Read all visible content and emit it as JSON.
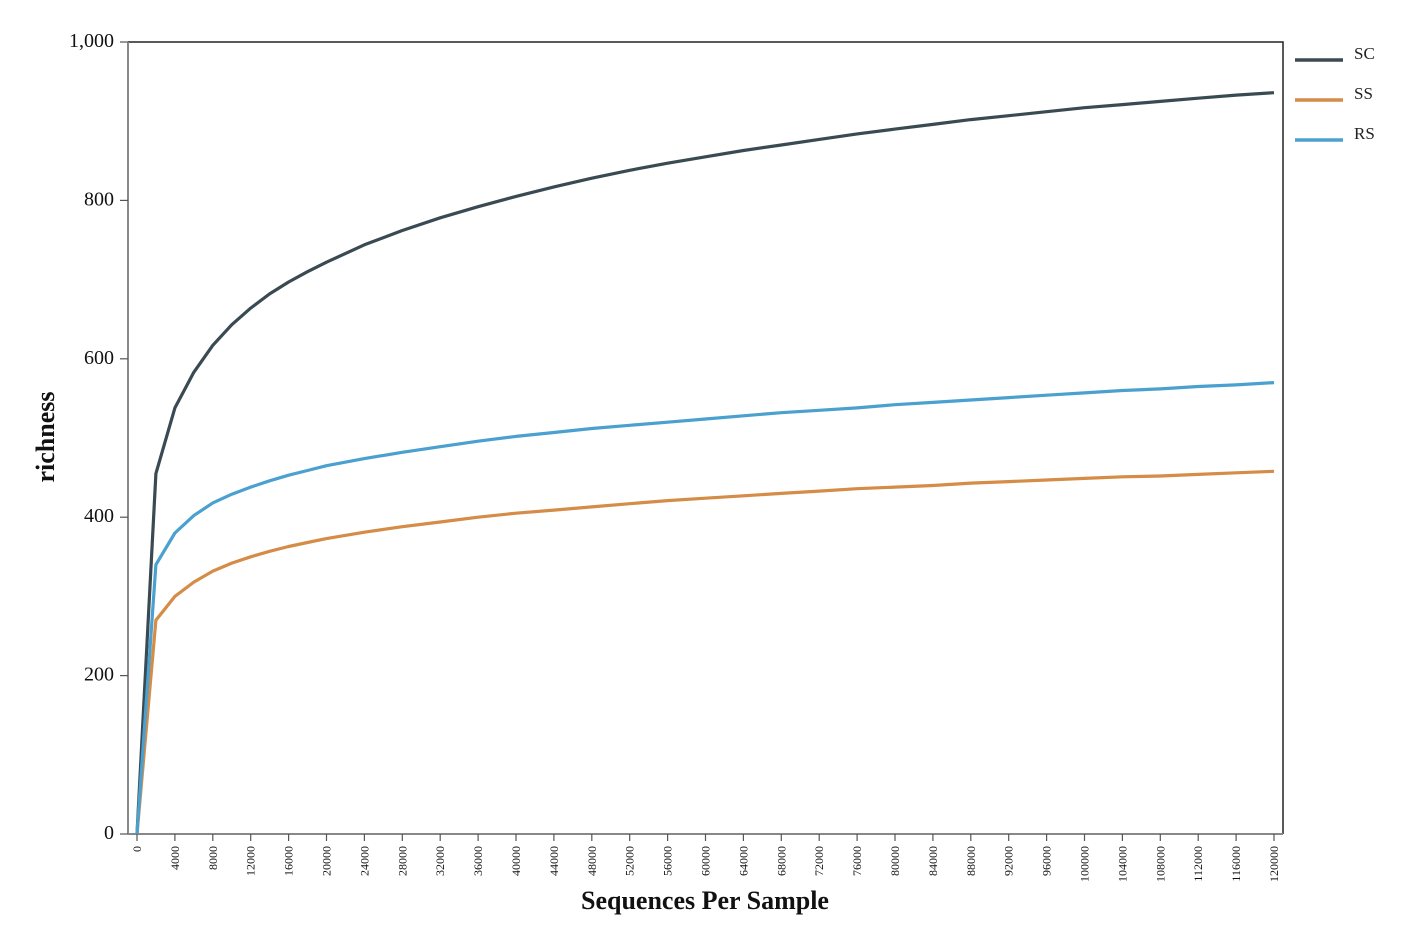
{
  "chart_data": {
    "type": "line",
    "xlabel": "Sequences Per Sample",
    "ylabel": "richness",
    "xlim": [
      0,
      120000
    ],
    "ylim": [
      0,
      1000
    ],
    "x_ticks": [
      "0",
      "4000",
      "8000",
      "12000",
      "16000",
      "20000",
      "24000",
      "28000",
      "32000",
      "36000",
      "40000",
      "44000",
      "48000",
      "52000",
      "56000",
      "60000",
      "64000",
      "68000",
      "72000",
      "76000",
      "80000",
      "84000",
      "88000",
      "92000",
      "96000",
      "100000",
      "104000",
      "108000",
      "112000",
      "116000",
      "120000"
    ],
    "y_ticks": [
      "0",
      "200",
      "400",
      "600",
      "800",
      "1,000"
    ],
    "legend_position": "top-right",
    "grid": false,
    "x": [
      0,
      2000,
      4000,
      6000,
      8000,
      10000,
      12000,
      14000,
      16000,
      18000,
      20000,
      24000,
      28000,
      32000,
      36000,
      40000,
      44000,
      48000,
      52000,
      56000,
      60000,
      64000,
      68000,
      72000,
      76000,
      80000,
      84000,
      88000,
      92000,
      96000,
      100000,
      104000,
      108000,
      112000,
      116000,
      120000
    ],
    "series": [
      {
        "name": "SC",
        "color": "#3a4a52",
        "values": [
          0,
          455,
          538,
          583,
          617,
          643,
          664,
          682,
          697,
          710,
          722,
          744,
          762,
          778,
          792,
          805,
          817,
          828,
          838,
          847,
          855,
          863,
          870,
          877,
          884,
          890,
          896,
          902,
          907,
          912,
          917,
          921,
          925,
          929,
          933,
          936
        ]
      },
      {
        "name": "SS",
        "color": "#d48c47",
        "values": [
          0,
          270,
          300,
          318,
          332,
          342,
          350,
          357,
          363,
          368,
          373,
          381,
          388,
          394,
          400,
          405,
          409,
          413,
          417,
          421,
          424,
          427,
          430,
          433,
          436,
          438,
          440,
          443,
          445,
          447,
          449,
          451,
          452,
          454,
          456,
          458
        ]
      },
      {
        "name": "RS",
        "color": "#4aa0cf",
        "values": [
          0,
          340,
          380,
          402,
          418,
          429,
          438,
          446,
          453,
          459,
          465,
          474,
          482,
          489,
          496,
          502,
          507,
          512,
          516,
          520,
          524,
          528,
          532,
          535,
          538,
          542,
          545,
          548,
          551,
          554,
          557,
          560,
          562,
          565,
          567,
          570
        ]
      }
    ]
  }
}
